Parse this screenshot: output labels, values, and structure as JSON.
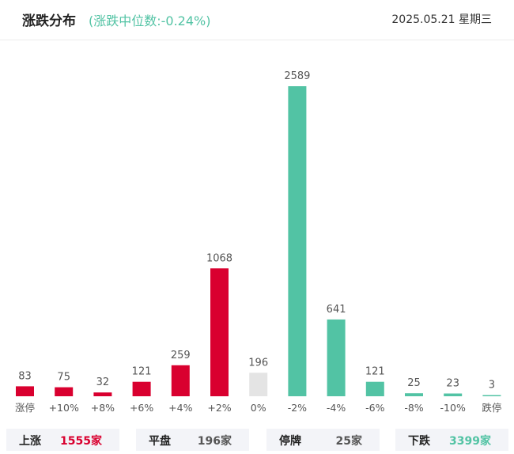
{
  "header": {
    "title": "涨跌分布",
    "subtitle": "(涨跌中位数:-0.24%)",
    "date": "2025.05.21 星期三"
  },
  "colors": {
    "up": "#d9002f",
    "flat": "#e4e4e4",
    "down": "#52c3a4"
  },
  "chart_data": {
    "type": "bar",
    "categories": [
      "涨停",
      "+10%",
      "+8%",
      "+6%",
      "+4%",
      "+2%",
      "0%",
      "-2%",
      "-4%",
      "-6%",
      "-8%",
      "-10%",
      "跌停"
    ],
    "values": [
      83,
      75,
      32,
      121,
      259,
      1068,
      196,
      2589,
      641,
      121,
      25,
      23,
      3
    ],
    "bar_colors": [
      "up",
      "up",
      "up",
      "up",
      "up",
      "up",
      "flat",
      "down",
      "down",
      "down",
      "down",
      "down",
      "down"
    ],
    "grid": false,
    "legend": "none"
  },
  "summary": [
    {
      "label": "上涨",
      "value": "1555家",
      "tone": "up"
    },
    {
      "label": "平盘",
      "value": "196家",
      "tone": "neutral"
    },
    {
      "label": "停牌",
      "value": "25家",
      "tone": "neutral"
    },
    {
      "label": "下跌",
      "value": "3399家",
      "tone": "down"
    }
  ]
}
